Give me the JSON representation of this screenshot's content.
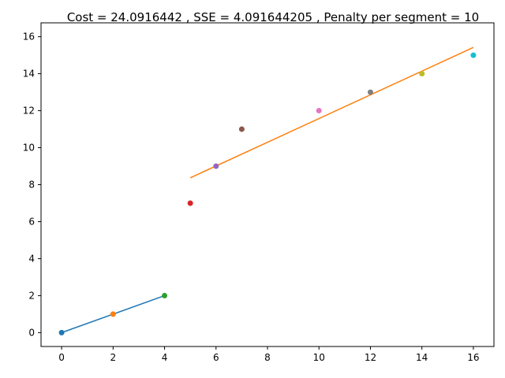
{
  "chart_data": {
    "type": "scatter",
    "title": "Cost = 24.0916442 , SSE = 4.091644205 , Penalty per segment = 10",
    "xlabel": "",
    "ylabel": "",
    "xlim": [
      -0.8,
      16.8
    ],
    "ylim": [
      -0.75,
      16.75
    ],
    "x_ticks": [
      0,
      2,
      4,
      6,
      8,
      10,
      12,
      14,
      16
    ],
    "y_ticks": [
      0,
      2,
      4,
      6,
      8,
      10,
      12,
      14,
      16
    ],
    "grid": false,
    "points": [
      {
        "x": 0,
        "y": 0,
        "color": "#1f77b4"
      },
      {
        "x": 2,
        "y": 1,
        "color": "#ff7f0e"
      },
      {
        "x": 4,
        "y": 2,
        "color": "#2ca02c"
      },
      {
        "x": 5,
        "y": 7,
        "color": "#d62728"
      },
      {
        "x": 6,
        "y": 9,
        "color": "#9467bd"
      },
      {
        "x": 7,
        "y": 11,
        "color": "#8c564b"
      },
      {
        "x": 10,
        "y": 12,
        "color": "#e377c2"
      },
      {
        "x": 12,
        "y": 13,
        "color": "#7f7f7f"
      },
      {
        "x": 14,
        "y": 14,
        "color": "#bcbd22"
      },
      {
        "x": 16,
        "y": 15,
        "color": "#17becf"
      }
    ],
    "segments": [
      {
        "x": [
          0,
          4
        ],
        "y": [
          0,
          2
        ],
        "color": "#1f77b4"
      },
      {
        "x": [
          5,
          16
        ],
        "y": [
          8.37,
          15.42
        ],
        "color": "#ff7f0e"
      }
    ]
  }
}
